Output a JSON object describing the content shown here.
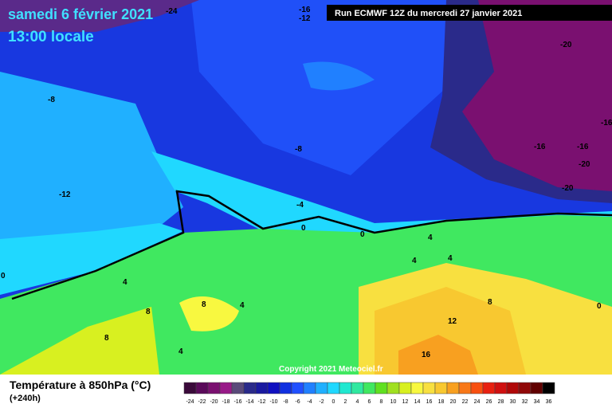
{
  "header": {
    "date": "samedi 6 février 2021",
    "time": "13:00 locale",
    "run": "Run ECMWF 12Z du mercredi 27 janvier 2021"
  },
  "footer": {
    "copyright": "Copyright 2021 Meteociel.fr"
  },
  "legend": {
    "title": "Température à 850hPa (°C)",
    "lead": "(+240h)",
    "scale": [
      -24,
      -22,
      -20,
      -18,
      -16,
      -14,
      -12,
      -10,
      -8,
      -6,
      -4,
      -2,
      0,
      2,
      4,
      6,
      8,
      10,
      12,
      14,
      16,
      18,
      20,
      22,
      24,
      26,
      28,
      30,
      32,
      34,
      36
    ],
    "colors": [
      "#3a0a3a",
      "#5a0a5a",
      "#7a1070",
      "#981a88",
      "#5a4a7a",
      "#2a2a8a",
      "#1a1aa0",
      "#1010c0",
      "#1030e0",
      "#2050ff",
      "#2080ff",
      "#20b0ff",
      "#20d8ff",
      "#20e8d0",
      "#30e8a0",
      "#40e860",
      "#60e020",
      "#a0e020",
      "#d8f020",
      "#f8f840",
      "#f8e040",
      "#f8c830",
      "#f8a020",
      "#f87818",
      "#f85010",
      "#e82010",
      "#d01010",
      "#b00808",
      "#900808",
      "#600000",
      "#000000"
    ]
  },
  "contour_labels": [
    -24,
    -16,
    -12,
    -20,
    -8,
    -8,
    -12,
    -16,
    -16,
    -16,
    -20,
    -20,
    -4,
    0,
    0,
    0,
    4,
    4,
    4,
    4,
    4,
    8,
    8,
    8,
    4,
    8,
    12,
    16,
    0
  ]
}
